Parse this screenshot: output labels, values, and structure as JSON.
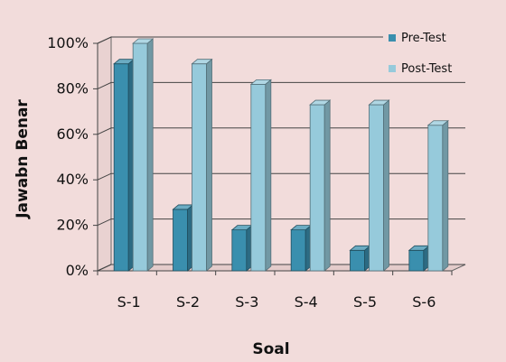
{
  "chart_data": {
    "type": "bar",
    "categories": [
      "S-1",
      "S-2",
      "S-3",
      "S-4",
      "S-5",
      "S-6"
    ],
    "series": [
      {
        "name": "Pre-Test",
        "values": [
          91,
          27,
          18,
          18,
          9,
          9
        ],
        "color": "#3a8fae"
      },
      {
        "name": "Post-Test",
        "values": [
          100,
          91,
          82,
          73,
          73,
          64
        ],
        "color": "#96cadb"
      }
    ],
    "title": "",
    "xlabel": "Soal",
    "ylabel": "Jawabn Benar",
    "ylim": [
      0,
      100
    ],
    "yticks": [
      "0%",
      "20%",
      "40%",
      "60%",
      "80%",
      "100%"
    ],
    "grid": true,
    "legend_position": "top-right",
    "style": "3d-clustered"
  }
}
